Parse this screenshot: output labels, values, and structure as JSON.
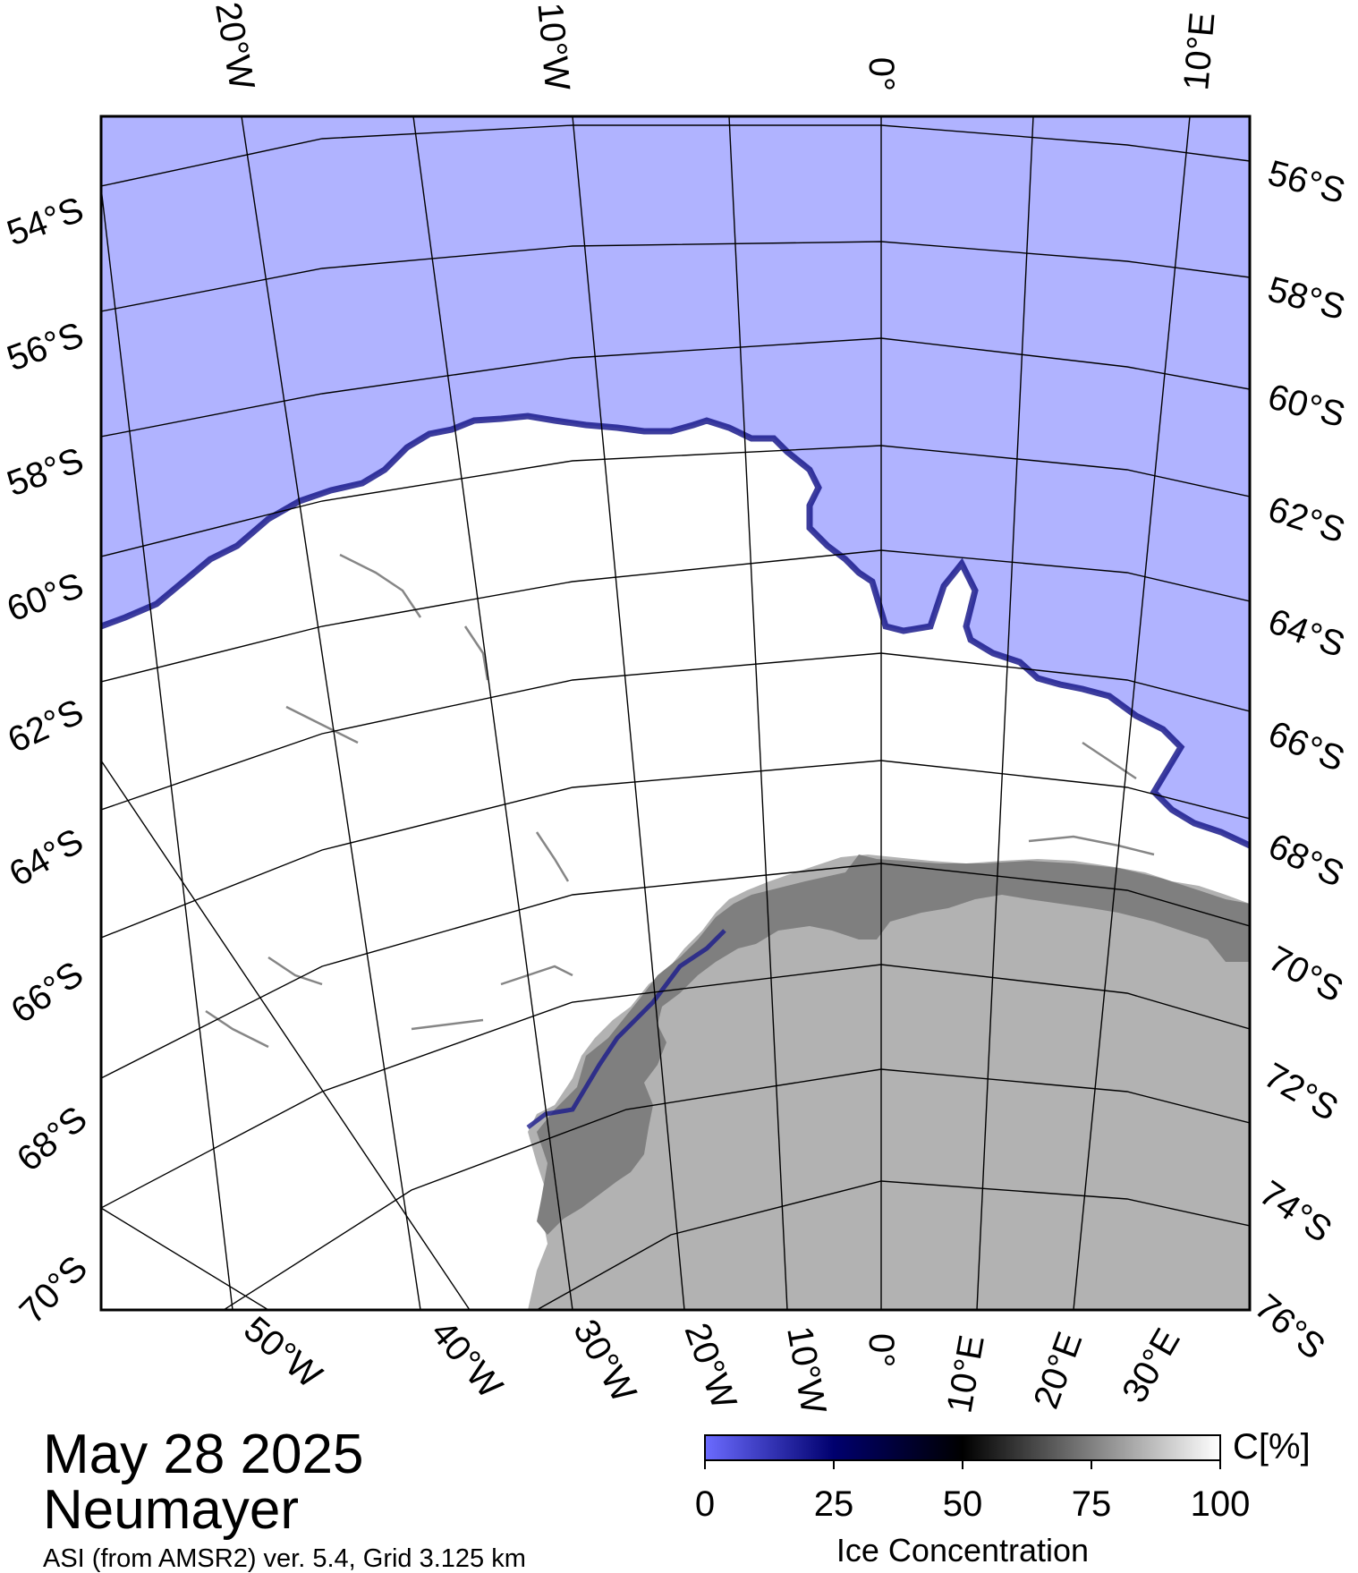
{
  "map": {
    "top_longitude_labels": [
      "20°W",
      "10°W",
      "0°",
      "10°E"
    ],
    "left_latitude_labels": [
      "54°S",
      "56°S",
      "58°S",
      "60°S",
      "62°S",
      "64°S",
      "66°S",
      "68°S",
      "70°S"
    ],
    "right_latitude_labels": [
      "56°S",
      "58°S",
      "60°S",
      "62°S",
      "64°S",
      "66°S",
      "68°S",
      "70°S",
      "72°S",
      "74°S",
      "76°S"
    ],
    "bottom_longitude_labels": [
      "50°W",
      "40°W",
      "30°W",
      "20°W",
      "10°W",
      "0°",
      "10°E",
      "20°E",
      "30°E"
    ],
    "colors": {
      "open_water": "#b0b3ff",
      "sea_ice": "#ffffff",
      "ice_shelf": "#7f7f7f",
      "land": "#b2b2b2",
      "ice_edge": "#1b1b8c"
    }
  },
  "legend": {
    "unit_label": "C[%]",
    "tick_labels": [
      "0",
      "25",
      "50",
      "75",
      "100"
    ],
    "title": "Ice Concentration",
    "color_stops": [
      "#6b6bff",
      "#00006e",
      "#000000",
      "#808080",
      "#ffffff"
    ]
  },
  "footer": {
    "date": "May 28 2025",
    "station": "Neumayer",
    "product": "ASI (from AMSR2) ver. 5.4,  Grid 3.125 km"
  }
}
